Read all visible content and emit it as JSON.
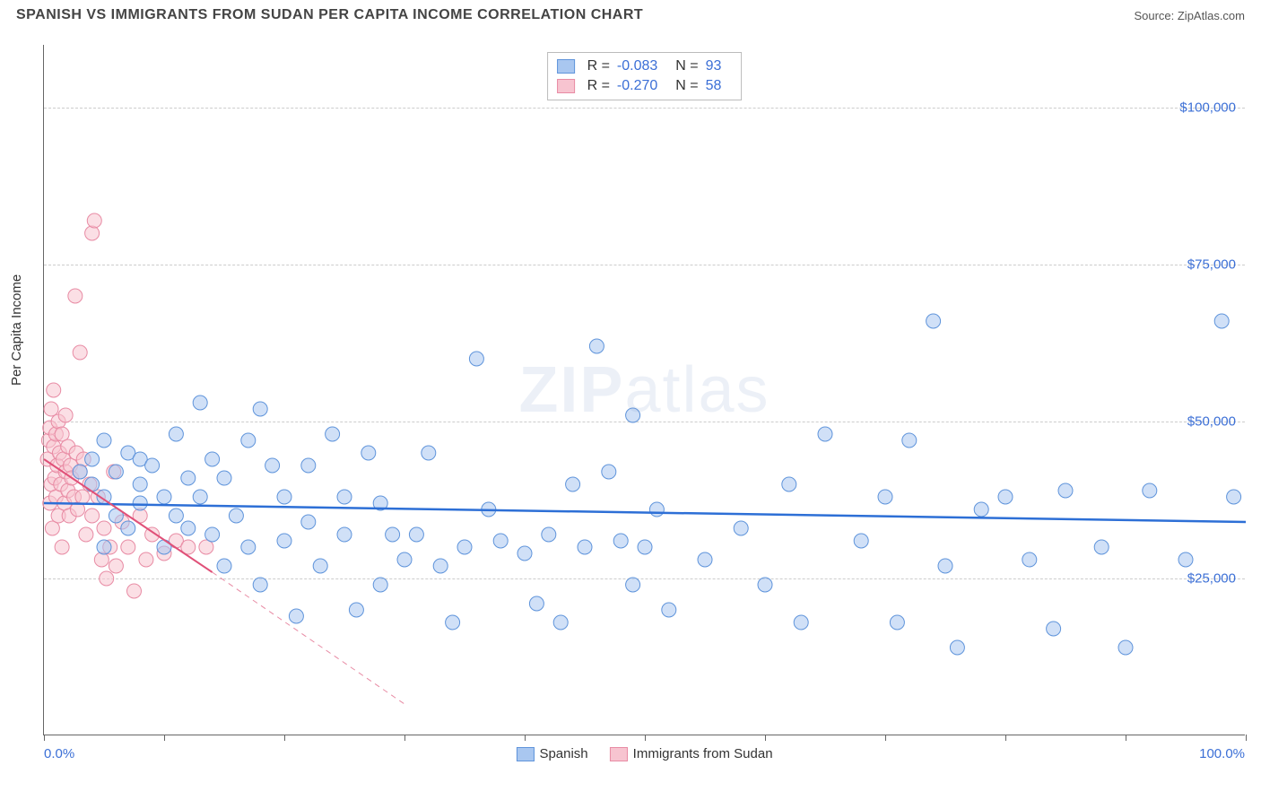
{
  "title": "SPANISH VS IMMIGRANTS FROM SUDAN PER CAPITA INCOME CORRELATION CHART",
  "source_label": "Source: ",
  "source_name": "ZipAtlas.com",
  "watermark_a": "ZIP",
  "watermark_b": "atlas",
  "chart": {
    "type": "scatter",
    "ylabel": "Per Capita Income",
    "xlim": [
      0,
      100
    ],
    "ylim": [
      0,
      110000
    ],
    "x_axis_min_label": "0.0%",
    "x_axis_max_label": "100.0%",
    "y_gridlines": [
      25000,
      50000,
      75000,
      100000
    ],
    "y_tick_labels": [
      "$25,000",
      "$50,000",
      "$75,000",
      "$100,000"
    ],
    "x_ticks": [
      0,
      10,
      20,
      30,
      40,
      50,
      60,
      70,
      80,
      90,
      100
    ],
    "background_color": "#ffffff",
    "grid_color": "#cccccc",
    "axis_color": "#666666",
    "value_color": "#3b6fd6",
    "marker_radius": 8,
    "marker_opacity": 0.55,
    "series": [
      {
        "name": "Spanish",
        "fill": "#a9c7f0",
        "stroke": "#5f94db",
        "r_value": "-0.083",
        "n_value": "93",
        "trend": {
          "x1": 0,
          "y1": 37000,
          "x2": 100,
          "y2": 34000,
          "color": "#2d6fd6",
          "width": 2.5,
          "dash": "none"
        },
        "points": [
          [
            3,
            42000
          ],
          [
            4,
            40000
          ],
          [
            4,
            44000
          ],
          [
            5,
            38000
          ],
          [
            5,
            47000
          ],
          [
            5,
            30000
          ],
          [
            6,
            42000
          ],
          [
            6,
            35000
          ],
          [
            7,
            45000
          ],
          [
            7,
            33000
          ],
          [
            8,
            40000
          ],
          [
            8,
            37000
          ],
          [
            8,
            44000
          ],
          [
            9,
            43000
          ],
          [
            10,
            38000
          ],
          [
            10,
            30000
          ],
          [
            11,
            35000
          ],
          [
            11,
            48000
          ],
          [
            12,
            33000
          ],
          [
            12,
            41000
          ],
          [
            13,
            38000
          ],
          [
            13,
            53000
          ],
          [
            14,
            44000
          ],
          [
            14,
            32000
          ],
          [
            15,
            41000
          ],
          [
            15,
            27000
          ],
          [
            16,
            35000
          ],
          [
            17,
            47000
          ],
          [
            17,
            30000
          ],
          [
            18,
            52000
          ],
          [
            18,
            24000
          ],
          [
            19,
            43000
          ],
          [
            20,
            31000
          ],
          [
            20,
            38000
          ],
          [
            21,
            19000
          ],
          [
            22,
            34000
          ],
          [
            22,
            43000
          ],
          [
            23,
            27000
          ],
          [
            24,
            48000
          ],
          [
            25,
            38000
          ],
          [
            25,
            32000
          ],
          [
            26,
            20000
          ],
          [
            27,
            45000
          ],
          [
            28,
            24000
          ],
          [
            28,
            37000
          ],
          [
            29,
            32000
          ],
          [
            30,
            28000
          ],
          [
            31,
            32000
          ],
          [
            32,
            45000
          ],
          [
            33,
            27000
          ],
          [
            34,
            18000
          ],
          [
            35,
            30000
          ],
          [
            36,
            60000
          ],
          [
            37,
            36000
          ],
          [
            38,
            31000
          ],
          [
            40,
            29000
          ],
          [
            41,
            21000
          ],
          [
            42,
            32000
          ],
          [
            43,
            18000
          ],
          [
            44,
            40000
          ],
          [
            45,
            30000
          ],
          [
            46,
            62000
          ],
          [
            47,
            42000
          ],
          [
            48,
            31000
          ],
          [
            49,
            24000
          ],
          [
            49,
            51000
          ],
          [
            50,
            30000
          ],
          [
            51,
            36000
          ],
          [
            52,
            20000
          ],
          [
            55,
            28000
          ],
          [
            58,
            33000
          ],
          [
            60,
            24000
          ],
          [
            62,
            40000
          ],
          [
            63,
            18000
          ],
          [
            65,
            48000
          ],
          [
            68,
            31000
          ],
          [
            70,
            38000
          ],
          [
            71,
            18000
          ],
          [
            72,
            47000
          ],
          [
            74,
            66000
          ],
          [
            75,
            27000
          ],
          [
            76,
            14000
          ],
          [
            78,
            36000
          ],
          [
            80,
            38000
          ],
          [
            82,
            28000
          ],
          [
            84,
            17000
          ],
          [
            85,
            39000
          ],
          [
            88,
            30000
          ],
          [
            90,
            14000
          ],
          [
            92,
            39000
          ],
          [
            95,
            28000
          ],
          [
            98,
            66000
          ],
          [
            99,
            38000
          ]
        ]
      },
      {
        "name": "Immigrants from Sudan",
        "fill": "#f7c4d0",
        "stroke": "#e88ba4",
        "r_value": "-0.270",
        "n_value": "58",
        "trend_solid": {
          "x1": 0,
          "y1": 44000,
          "x2": 14,
          "y2": 26000,
          "color": "#e05078",
          "width": 2,
          "dash": "none"
        },
        "trend_dash": {
          "x1": 14,
          "y1": 26000,
          "x2": 30,
          "y2": 5000,
          "color": "#e88ba4",
          "width": 1,
          "dash": "6,5"
        },
        "points": [
          [
            0.3,
            44000
          ],
          [
            0.4,
            47000
          ],
          [
            0.5,
            37000
          ],
          [
            0.5,
            49000
          ],
          [
            0.6,
            40000
          ],
          [
            0.6,
            52000
          ],
          [
            0.7,
            33000
          ],
          [
            0.8,
            46000
          ],
          [
            0.8,
            55000
          ],
          [
            0.9,
            41000
          ],
          [
            1.0,
            38000
          ],
          [
            1.0,
            48000
          ],
          [
            1.1,
            43000
          ],
          [
            1.2,
            50000
          ],
          [
            1.2,
            35000
          ],
          [
            1.3,
            45000
          ],
          [
            1.4,
            40000
          ],
          [
            1.5,
            48000
          ],
          [
            1.5,
            30000
          ],
          [
            1.6,
            44000
          ],
          [
            1.7,
            37000
          ],
          [
            1.8,
            51000
          ],
          [
            1.8,
            42000
          ],
          [
            2.0,
            46000
          ],
          [
            2.0,
            39000
          ],
          [
            2.1,
            35000
          ],
          [
            2.2,
            43000
          ],
          [
            2.3,
            41000
          ],
          [
            2.5,
            38000
          ],
          [
            2.6,
            70000
          ],
          [
            2.7,
            45000
          ],
          [
            2.8,
            36000
          ],
          [
            3.0,
            42000
          ],
          [
            3.0,
            61000
          ],
          [
            3.2,
            38000
          ],
          [
            3.3,
            44000
          ],
          [
            3.5,
            32000
          ],
          [
            3.8,
            40000
          ],
          [
            4.0,
            80000
          ],
          [
            4.0,
            35000
          ],
          [
            4.2,
            82000
          ],
          [
            4.5,
            38000
          ],
          [
            4.8,
            28000
          ],
          [
            5.0,
            33000
          ],
          [
            5.2,
            25000
          ],
          [
            5.5,
            30000
          ],
          [
            5.8,
            42000
          ],
          [
            6.0,
            27000
          ],
          [
            6.5,
            34000
          ],
          [
            7.0,
            30000
          ],
          [
            7.5,
            23000
          ],
          [
            8.0,
            35000
          ],
          [
            8.5,
            28000
          ],
          [
            9.0,
            32000
          ],
          [
            10.0,
            29000
          ],
          [
            11.0,
            31000
          ],
          [
            12.0,
            30000
          ],
          [
            13.5,
            30000
          ]
        ]
      }
    ]
  },
  "legend_bottom": {
    "items": [
      {
        "label": "Spanish",
        "fill": "#a9c7f0",
        "stroke": "#5f94db"
      },
      {
        "label": "Immigrants from Sudan",
        "fill": "#f7c4d0",
        "stroke": "#e88ba4"
      }
    ]
  }
}
